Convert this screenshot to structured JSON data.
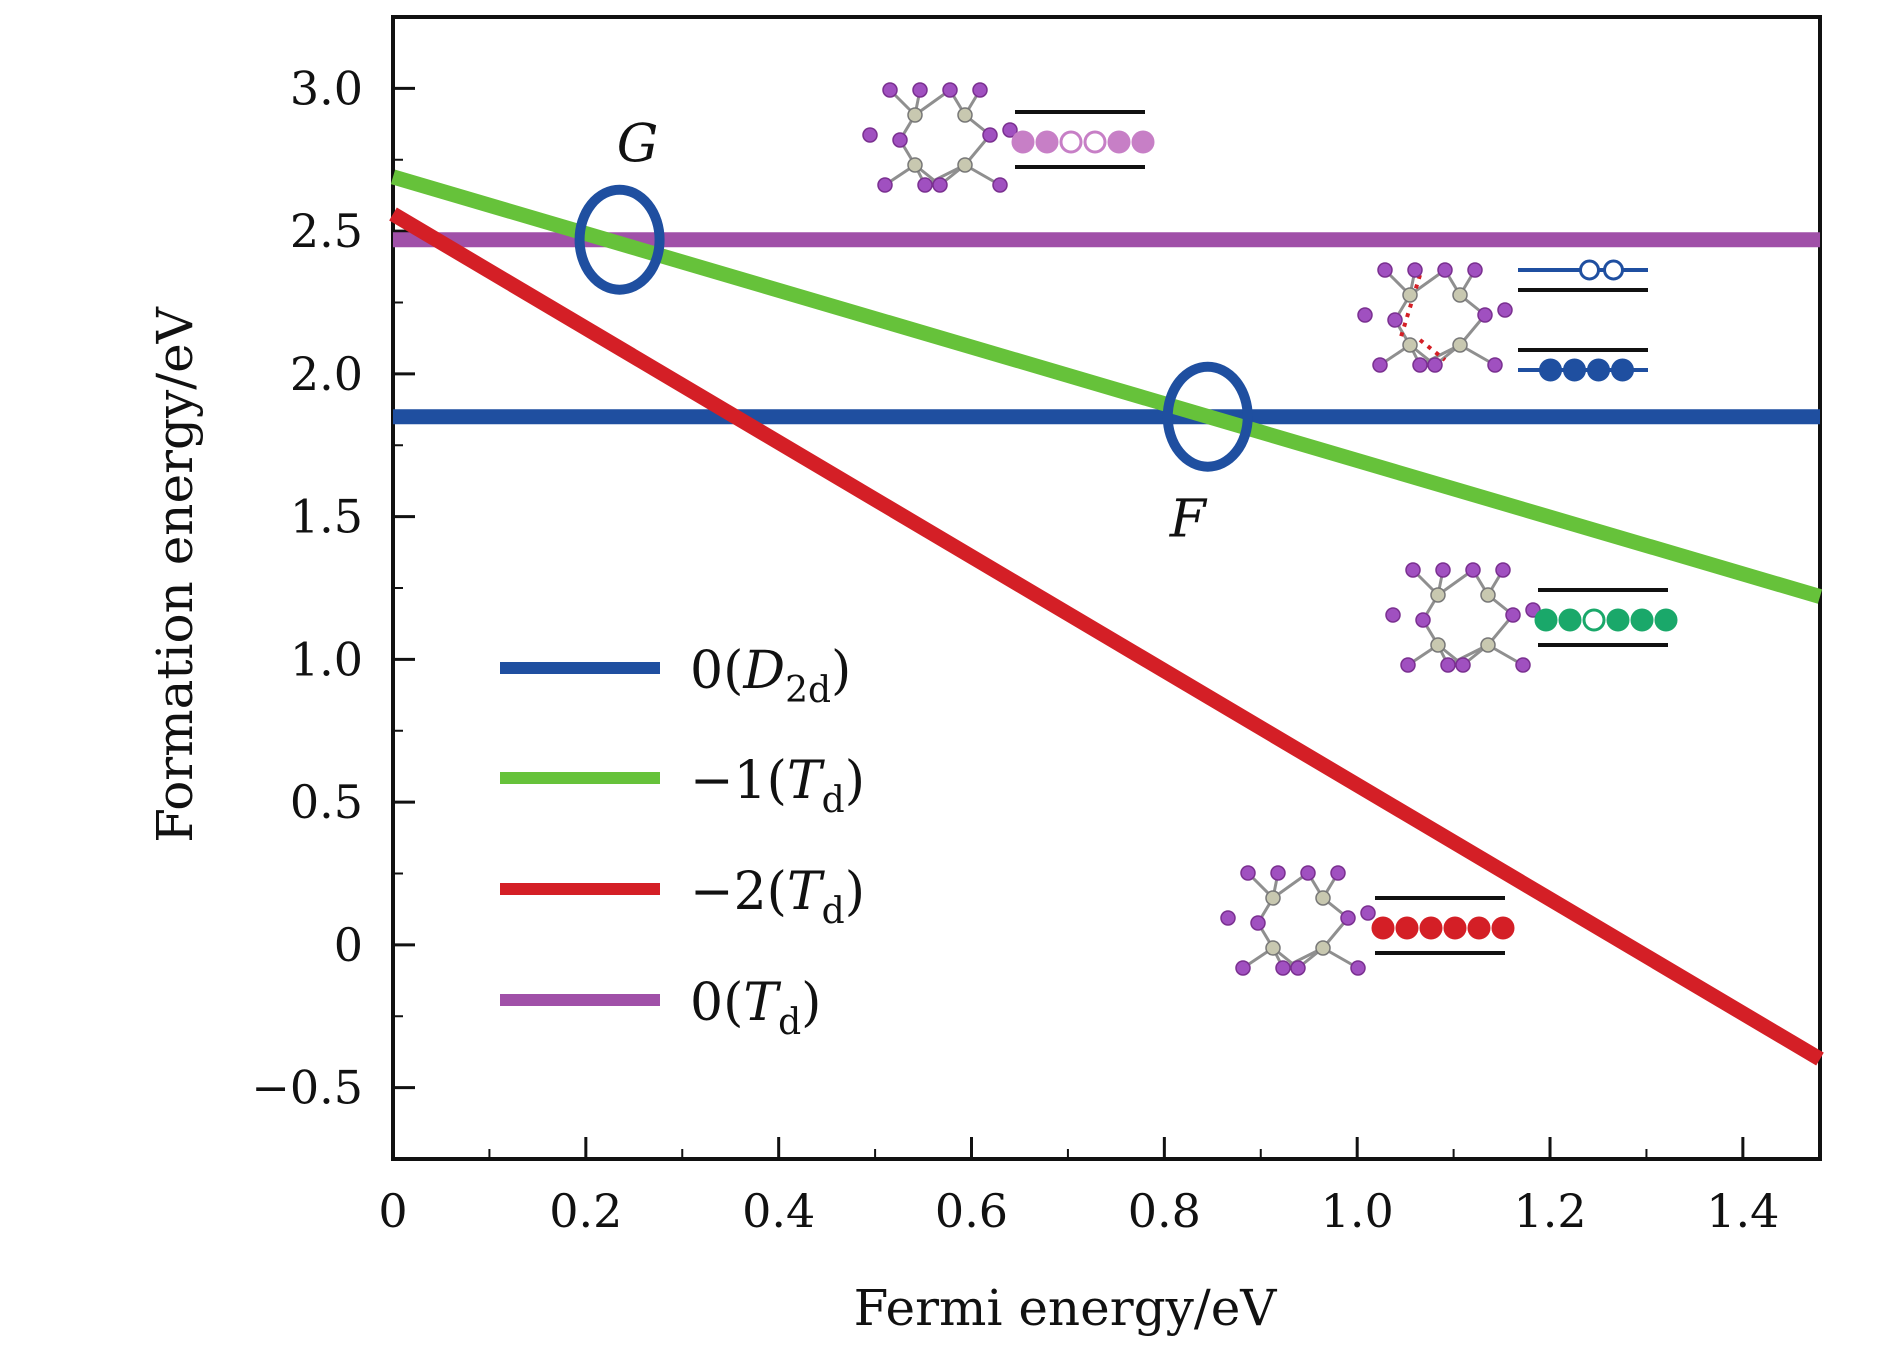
{
  "chart_data": {
    "type": "line",
    "xlabel": "Fermi energy/eV",
    "ylabel": "Formation energy/eV",
    "xlim": [
      0,
      1.48
    ],
    "ylim": [
      -0.75,
      3.25
    ],
    "x_ticks": [
      "0",
      "0.2",
      "0.4",
      "0.6",
      "0.8",
      "1.0",
      "1.2",
      "1.4"
    ],
    "x_tick_values": [
      0,
      0.2,
      0.4,
      0.6,
      0.8,
      1.0,
      1.2,
      1.4
    ],
    "y_ticks": [
      "3.0",
      "2.5",
      "2.0",
      "1.5",
      "1.0",
      "0.5",
      "0",
      "−0.5"
    ],
    "y_tick_values": [
      3.0,
      2.5,
      2.0,
      1.5,
      1.0,
      0.5,
      0,
      -0.5
    ],
    "grid": false,
    "legend_position": "left-center",
    "series": [
      {
        "name": "0(D2d)",
        "label_main": "0(",
        "label_sym": "D",
        "label_sub": "2d",
        "label_end": ")",
        "color": "#1f4fa0",
        "x": [
          0,
          1.48
        ],
        "y": [
          1.85,
          1.85
        ]
      },
      {
        "name": "−1(Td)",
        "label_main": "−1(",
        "label_sym": "T",
        "label_sub": "d",
        "label_end": ")",
        "color": "#66c23a",
        "x": [
          0,
          1.48
        ],
        "y": [
          2.69,
          1.22
        ]
      },
      {
        "name": "−2(Td)",
        "label_main": "−2(",
        "label_sym": "T",
        "label_sub": "d",
        "label_end": ")",
        "color": "#d41f26",
        "x": [
          0,
          1.48
        ],
        "y": [
          2.56,
          -0.4
        ]
      },
      {
        "name": "0(Td)",
        "label_main": "0(",
        "label_sym": "T",
        "label_sub": "d",
        "label_end": ")",
        "color": "#a050a8",
        "x": [
          0,
          1.48
        ],
        "y": [
          2.47,
          2.47
        ]
      }
    ],
    "annotations": [
      {
        "label": "G",
        "x": 0.235,
        "y": 2.47,
        "circle_color": "#1f4fa0"
      },
      {
        "label": "F",
        "x": 0.845,
        "y": 1.85,
        "circle_color": "#1f4fa0"
      }
    ],
    "insets": [
      {
        "name": "0(Td) structure",
        "occupancy": [
          1,
          1,
          0,
          0,
          1,
          1
        ],
        "fill_color": "#c77fc6"
      },
      {
        "name": "0(D2d) structure",
        "occupancy_top": [
          0,
          0
        ],
        "occupancy_bottom": [
          1,
          1,
          1,
          1
        ],
        "fill_color": "#1f4fa0"
      },
      {
        "name": "−1(Td) structure",
        "occupancy": [
          1,
          1,
          0,
          1,
          1,
          1
        ],
        "fill_color": "#1aa86a"
      },
      {
        "name": "−2(Td) structure",
        "occupancy": [
          1,
          1,
          1,
          1,
          1,
          1
        ],
        "fill_color": "#d41f26"
      }
    ]
  }
}
